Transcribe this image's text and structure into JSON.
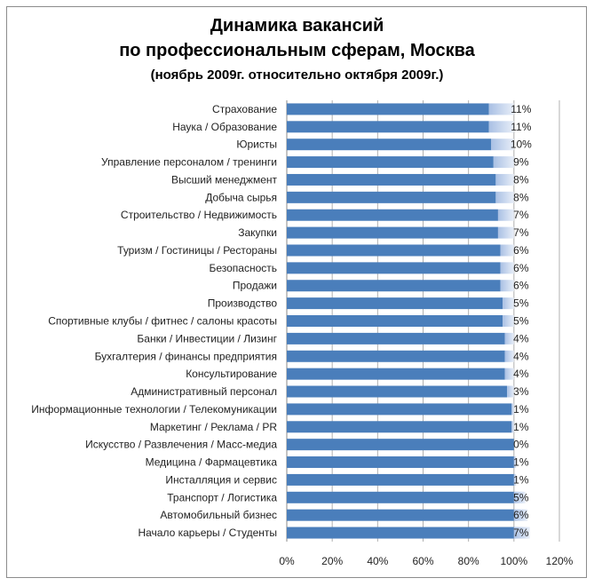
{
  "chart_data": {
    "type": "bar",
    "orientation": "horizontal",
    "stacked": true,
    "title_lines": [
      "Динамика вакансий",
      "по профессиональным сферам, Москва",
      "(ноябрь 2009г. относительно октября 2009г.)"
    ],
    "categories": [
      "Страхование",
      "Наука / Образование",
      "Юристы",
      "Управление персоналом / тренинги",
      "Высший менеджмент",
      "Добыча сырья",
      "Строительство / Недвижимость",
      "Закупки",
      "Туризм / Гостиницы / Рестораны",
      "Безопасность",
      "Продажи",
      "Производство",
      "Спортивные клубы / фитнес / салоны красоты",
      "Банки / Инвестиции / Лизинг",
      "Бухгалтерия / финансы предприятия",
      "Консультирование",
      "Административный персонал",
      "Информационные технологии / Телекомуникации",
      "Маркетинг / Реклама / PR",
      "Искусство / Развлечения / Масс-медиа",
      "Медицина / Фармацевтика",
      "Инсталляция и сервис",
      "Транспорт / Логистика",
      "Автомобильный бизнес",
      "Начало карьеры / Студенты"
    ],
    "series": [
      {
        "name": "base",
        "values": [
          89,
          89,
          90,
          91,
          92,
          92,
          93,
          93,
          94,
          94,
          94,
          95,
          95,
          96,
          96,
          96,
          97,
          99,
          99,
          100,
          100,
          100,
          100,
          100,
          100
        ]
      },
      {
        "name": "change",
        "values": [
          11,
          11,
          10,
          9,
          8,
          8,
          7,
          7,
          6,
          6,
          6,
          5,
          5,
          4,
          4,
          4,
          3,
          1,
          1,
          0,
          1,
          1,
          5,
          6,
          7
        ]
      }
    ],
    "data_labels": [
      "11%",
      "11%",
      "10%",
      "9%",
      "8%",
      "8%",
      "7%",
      "7%",
      "6%",
      "6%",
      "6%",
      "5%",
      "5%",
      "4%",
      "4%",
      "4%",
      "3%",
      "1%",
      "1%",
      "0%",
      "1%",
      "1%",
      "5%",
      "6%",
      "7%"
    ],
    "xticks": [
      "0%",
      "20%",
      "40%",
      "60%",
      "80%",
      "100%",
      "120%"
    ],
    "xlim": [
      0,
      120
    ],
    "grid": true,
    "colors": {
      "base": "#4a7ebb",
      "change": "#c6d6ee"
    }
  }
}
